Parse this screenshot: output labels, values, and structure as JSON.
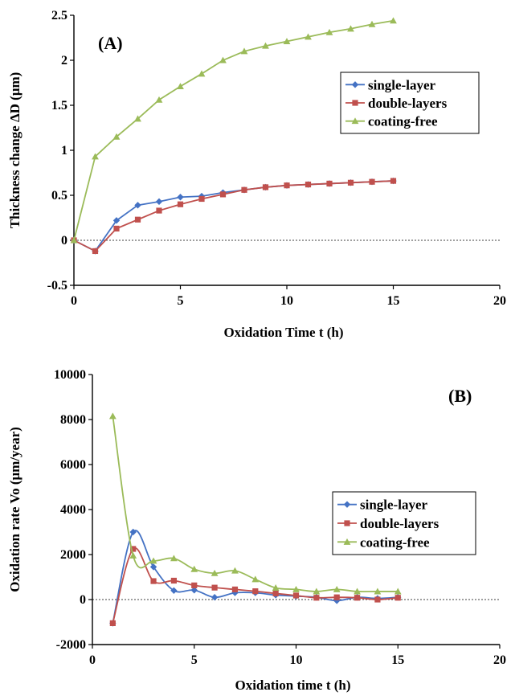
{
  "chart_data": [
    {
      "type": "line",
      "panel_label": "(A)",
      "xlabel": "Oxidation Time t (h)",
      "ylabel": "Thickness change ΔD (μm)",
      "xlim": [
        0,
        20
      ],
      "ylim": [
        -0.5,
        2.5
      ],
      "xticks": [
        0,
        5,
        10,
        15,
        20
      ],
      "yticks": [
        -0.5,
        0,
        0.5,
        1,
        1.5,
        2,
        2.5
      ],
      "ytick_labels": [
        "-0.5",
        "0",
        "0.5",
        "1",
        "1.5",
        "2",
        "2.5"
      ],
      "zero_line": true,
      "legend": "center-right",
      "series": [
        {
          "name": "single-layer",
          "color": "#4472C4",
          "marker": "diamond",
          "x": [
            0,
            1,
            2,
            3,
            4,
            5,
            6,
            7,
            8,
            9,
            10,
            11,
            12,
            13,
            14,
            15
          ],
          "y": [
            0,
            -0.12,
            0.22,
            0.39,
            0.43,
            0.48,
            0.49,
            0.53,
            0.56,
            0.59,
            0.61,
            0.62,
            0.63,
            0.64,
            0.65,
            0.66
          ]
        },
        {
          "name": "double-layers",
          "color": "#C0504D",
          "marker": "square",
          "x": [
            0,
            1,
            2,
            3,
            4,
            5,
            6,
            7,
            8,
            9,
            10,
            11,
            12,
            13,
            14,
            15
          ],
          "y": [
            0,
            -0.12,
            0.13,
            0.23,
            0.33,
            0.4,
            0.46,
            0.51,
            0.56,
            0.59,
            0.61,
            0.62,
            0.63,
            0.64,
            0.65,
            0.66
          ]
        },
        {
          "name": "coating-free",
          "color": "#9BBB59",
          "marker": "triangle",
          "x": [
            0,
            1,
            2,
            3,
            4,
            5,
            6,
            7,
            8,
            9,
            10,
            11,
            12,
            13,
            14,
            15
          ],
          "y": [
            0,
            0.93,
            1.15,
            1.35,
            1.56,
            1.71,
            1.85,
            2.0,
            2.1,
            2.16,
            2.21,
            2.26,
            2.31,
            2.35,
            2.4,
            2.44
          ]
        }
      ]
    },
    {
      "type": "line",
      "panel_label": "(B)",
      "xlabel": "Oxidation time t (h)",
      "ylabel": "Oxidation rate Vo (μm/year)",
      "xlim": [
        0,
        20
      ],
      "ylim": [
        -2000,
        10000
      ],
      "xticks": [
        0,
        5,
        10,
        15,
        20
      ],
      "yticks": [
        -2000,
        0,
        2000,
        4000,
        6000,
        8000,
        10000
      ],
      "ytick_labels": [
        "-2000",
        "0",
        "2000",
        "4000",
        "6000",
        "8000",
        "10000"
      ],
      "zero_line": true,
      "legend": "center-right",
      "series": [
        {
          "name": "single-layer",
          "color": "#4472C4",
          "marker": "diamond",
          "x": [
            1,
            2,
            3,
            4,
            5,
            6,
            7,
            8,
            9,
            10,
            11,
            12,
            13,
            14,
            15
          ],
          "y": [
            -1050,
            3000,
            1450,
            400,
            420,
            100,
            300,
            300,
            200,
            150,
            100,
            -50,
            100,
            50,
            100
          ]
        },
        {
          "name": "double-layers",
          "color": "#C0504D",
          "marker": "square",
          "x": [
            1,
            2,
            3,
            4,
            5,
            6,
            7,
            8,
            9,
            10,
            11,
            12,
            13,
            14,
            15
          ],
          "y": [
            -1050,
            2250,
            820,
            840,
            630,
            530,
            450,
            370,
            270,
            180,
            80,
            100,
            80,
            0,
            80
          ]
        },
        {
          "name": "coating-free",
          "color": "#9BBB59",
          "marker": "triangle",
          "x": [
            1,
            2,
            3,
            4,
            5,
            6,
            7,
            8,
            9,
            10,
            11,
            12,
            13,
            14,
            15
          ],
          "y": [
            8150,
            1950,
            1720,
            1830,
            1350,
            1170,
            1280,
            900,
            520,
            450,
            360,
            450,
            360,
            360,
            360
          ]
        }
      ]
    }
  ]
}
